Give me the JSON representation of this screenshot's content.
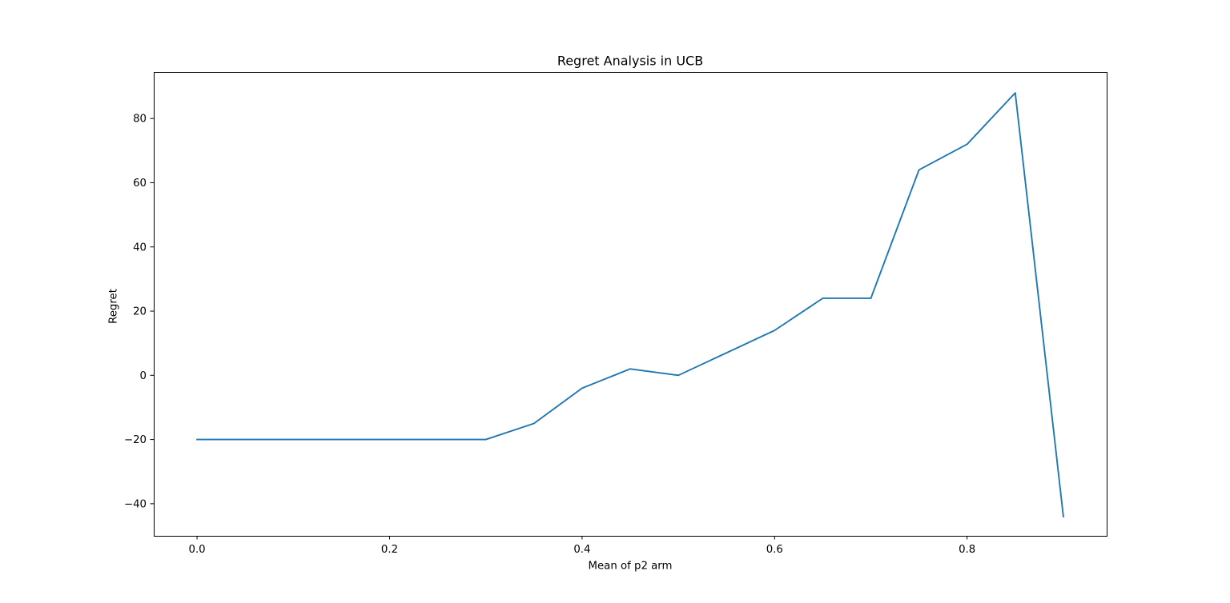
{
  "chart_data": {
    "type": "line",
    "title": "Regret Analysis in UCB",
    "xlabel": "Mean of p2 arm",
    "ylabel": "Regret",
    "xlim": [
      -0.045,
      0.945
    ],
    "ylim": [
      -50,
      94.5
    ],
    "xticks": [
      0.0,
      0.2,
      0.4,
      0.6,
      0.8
    ],
    "xtick_labels": [
      "0.0",
      "0.2",
      "0.4",
      "0.6",
      "0.8"
    ],
    "yticks": [
      -40,
      -20,
      0,
      20,
      40,
      60,
      80
    ],
    "ytick_labels": [
      "−40",
      "−20",
      "0",
      "20",
      "40",
      "60",
      "80"
    ],
    "grid": false,
    "series": [
      {
        "color": "#1f77b4",
        "x": [
          0.0,
          0.05,
          0.1,
          0.15,
          0.2,
          0.25,
          0.3,
          0.35,
          0.4,
          0.45,
          0.5,
          0.55,
          0.6,
          0.65,
          0.7,
          0.75,
          0.8,
          0.85,
          0.9
        ],
        "y": [
          -20,
          -20,
          -20,
          -20,
          -20,
          -20,
          -20,
          -15,
          -4,
          2,
          0,
          7,
          14,
          24,
          24,
          64,
          72,
          88,
          -44
        ]
      }
    ]
  }
}
